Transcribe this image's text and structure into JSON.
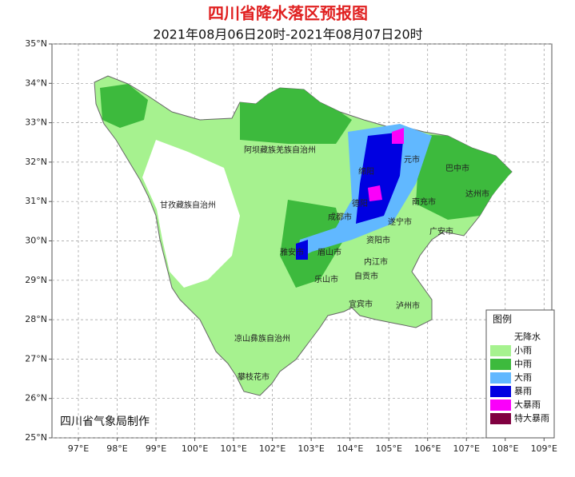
{
  "header": {
    "title": "四川省降水落区预报图",
    "subtitle": "2021年08月06日20时-2021年08月07日20时"
  },
  "map": {
    "lon_lim": [
      96.32,
      109.2
    ],
    "lat_lim": [
      25,
      35
    ],
    "grid": true,
    "lat_ticks": [
      {
        "value": 25,
        "label": "25°N"
      },
      {
        "value": 26,
        "label": "26°N"
      },
      {
        "value": 27,
        "label": "27°N"
      },
      {
        "value": 28,
        "label": "28°N"
      },
      {
        "value": 29,
        "label": "29°N"
      },
      {
        "value": 30,
        "label": "30°N"
      },
      {
        "value": 31,
        "label": "31°N"
      },
      {
        "value": 32,
        "label": "32°N"
      },
      {
        "value": 33,
        "label": "33°N"
      },
      {
        "value": 34,
        "label": "34°N"
      },
      {
        "value": 35,
        "label": "35°N"
      }
    ],
    "lon_ticks": [
      {
        "value": 97,
        "label": "97°E"
      },
      {
        "value": 98,
        "label": "98°E"
      },
      {
        "value": 99,
        "label": "99°E"
      },
      {
        "value": 100,
        "label": "100°E"
      },
      {
        "value": 101,
        "label": "101°E"
      },
      {
        "value": 102,
        "label": "102°E"
      },
      {
        "value": 103,
        "label": "103°E"
      },
      {
        "value": 104,
        "label": "104°E"
      },
      {
        "value": 105,
        "label": "105°E"
      },
      {
        "value": 106,
        "label": "106°E"
      },
      {
        "value": 107,
        "label": "107°E"
      },
      {
        "value": 108,
        "label": "108°E"
      },
      {
        "value": 109,
        "label": "109°E"
      }
    ],
    "places": [
      "阿坝藏族羌族自治州",
      "甘孜藏族自治州",
      "凉山彝族自治州",
      "攀枝花市",
      "元市",
      "绵阳",
      "德阳",
      "成都市",
      "遂宁市",
      "南充市",
      "巴中市",
      "达州市",
      "广安市",
      "资阳市",
      "雅安市",
      "眉山市",
      "内江市",
      "自贡市",
      "乐山市",
      "宜宾市",
      "泸州市"
    ],
    "credit": "四川省气象局制作"
  },
  "legend": {
    "title": "图例",
    "items": [
      {
        "label": "无降水",
        "color": "#ffffff"
      },
      {
        "label": "小雨",
        "color": "#a6f28f"
      },
      {
        "label": "中雨",
        "color": "#3dba3d"
      },
      {
        "label": "大雨",
        "color": "#61b8ff"
      },
      {
        "label": "暴雨",
        "color": "#0000e1"
      },
      {
        "label": "大暴雨",
        "color": "#fa00fa"
      },
      {
        "label": "特大暴雨",
        "color": "#800040"
      }
    ]
  }
}
